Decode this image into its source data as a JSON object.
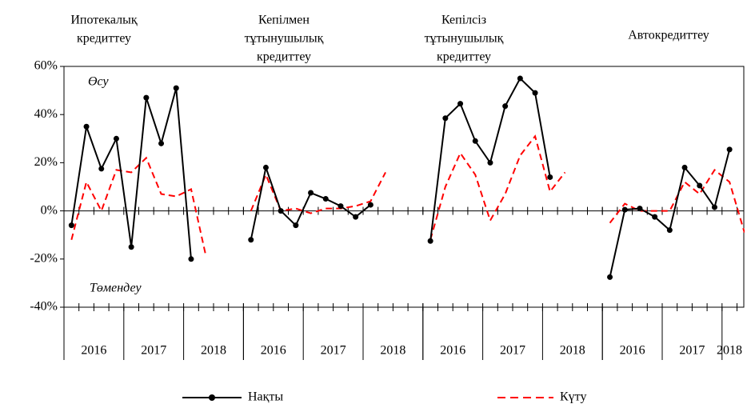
{
  "chart_data": {
    "type": "line",
    "ylim": [
      -40,
      60
    ],
    "yticks": [
      {
        "value": -40,
        "label": "-40%"
      },
      {
        "value": -20,
        "label": "-20%"
      },
      {
        "value": 0,
        "label": "0%"
      },
      {
        "value": 20,
        "label": "20%"
      },
      {
        "value": 40,
        "label": "40%"
      },
      {
        "value": 60,
        "label": "60%"
      }
    ],
    "annotations": [
      "Өсу",
      "Төмендеу"
    ],
    "series": [
      {
        "name": "Нақты",
        "color": "#000000"
      },
      {
        "name": "Күту",
        "color": "#ff0000"
      }
    ],
    "panels": [
      {
        "title": [
          "Ипотекалық",
          "кредиттеу"
        ],
        "years": [
          "2016",
          "2017",
          "2018"
        ],
        "actual": [
          -6,
          35,
          17.5,
          30,
          -15,
          47,
          28,
          51,
          -20
        ],
        "expected": [
          -12,
          12,
          0,
          17,
          16,
          22,
          7,
          6,
          9,
          -19
        ]
      },
      {
        "title": [
          "Кепілмен",
          "тұтынушылық",
          "кредиттеу"
        ],
        "years": [
          "2016",
          "2017",
          "2018"
        ],
        "actual": [
          -12,
          18,
          0,
          -6,
          7.5,
          5,
          2,
          -2.5,
          2.5
        ],
        "expected": [
          0,
          15,
          0,
          1,
          -1,
          1,
          1,
          2,
          4,
          16
        ]
      },
      {
        "title": [
          "Кепілсіз",
          "тұтынушылық",
          "кредиттеу"
        ],
        "years": [
          "2016",
          "2017",
          "2018"
        ],
        "actual": [
          -12.5,
          38.5,
          44.5,
          29,
          20,
          43.5,
          55,
          49,
          14
        ],
        "expected": [
          -12,
          10,
          24,
          15,
          -4,
          7,
          23,
          31,
          8,
          16
        ]
      },
      {
        "title": [
          "Автокредиттеу"
        ],
        "years": [
          "2016",
          "2017",
          "2018"
        ],
        "actual": [
          -27.5,
          0.5,
          1,
          -2.5,
          -8,
          18,
          10.5,
          1.5,
          25.5
        ],
        "expected": [
          -5,
          3,
          0,
          0,
          0,
          12,
          7,
          17,
          12,
          -9
        ]
      }
    ]
  }
}
